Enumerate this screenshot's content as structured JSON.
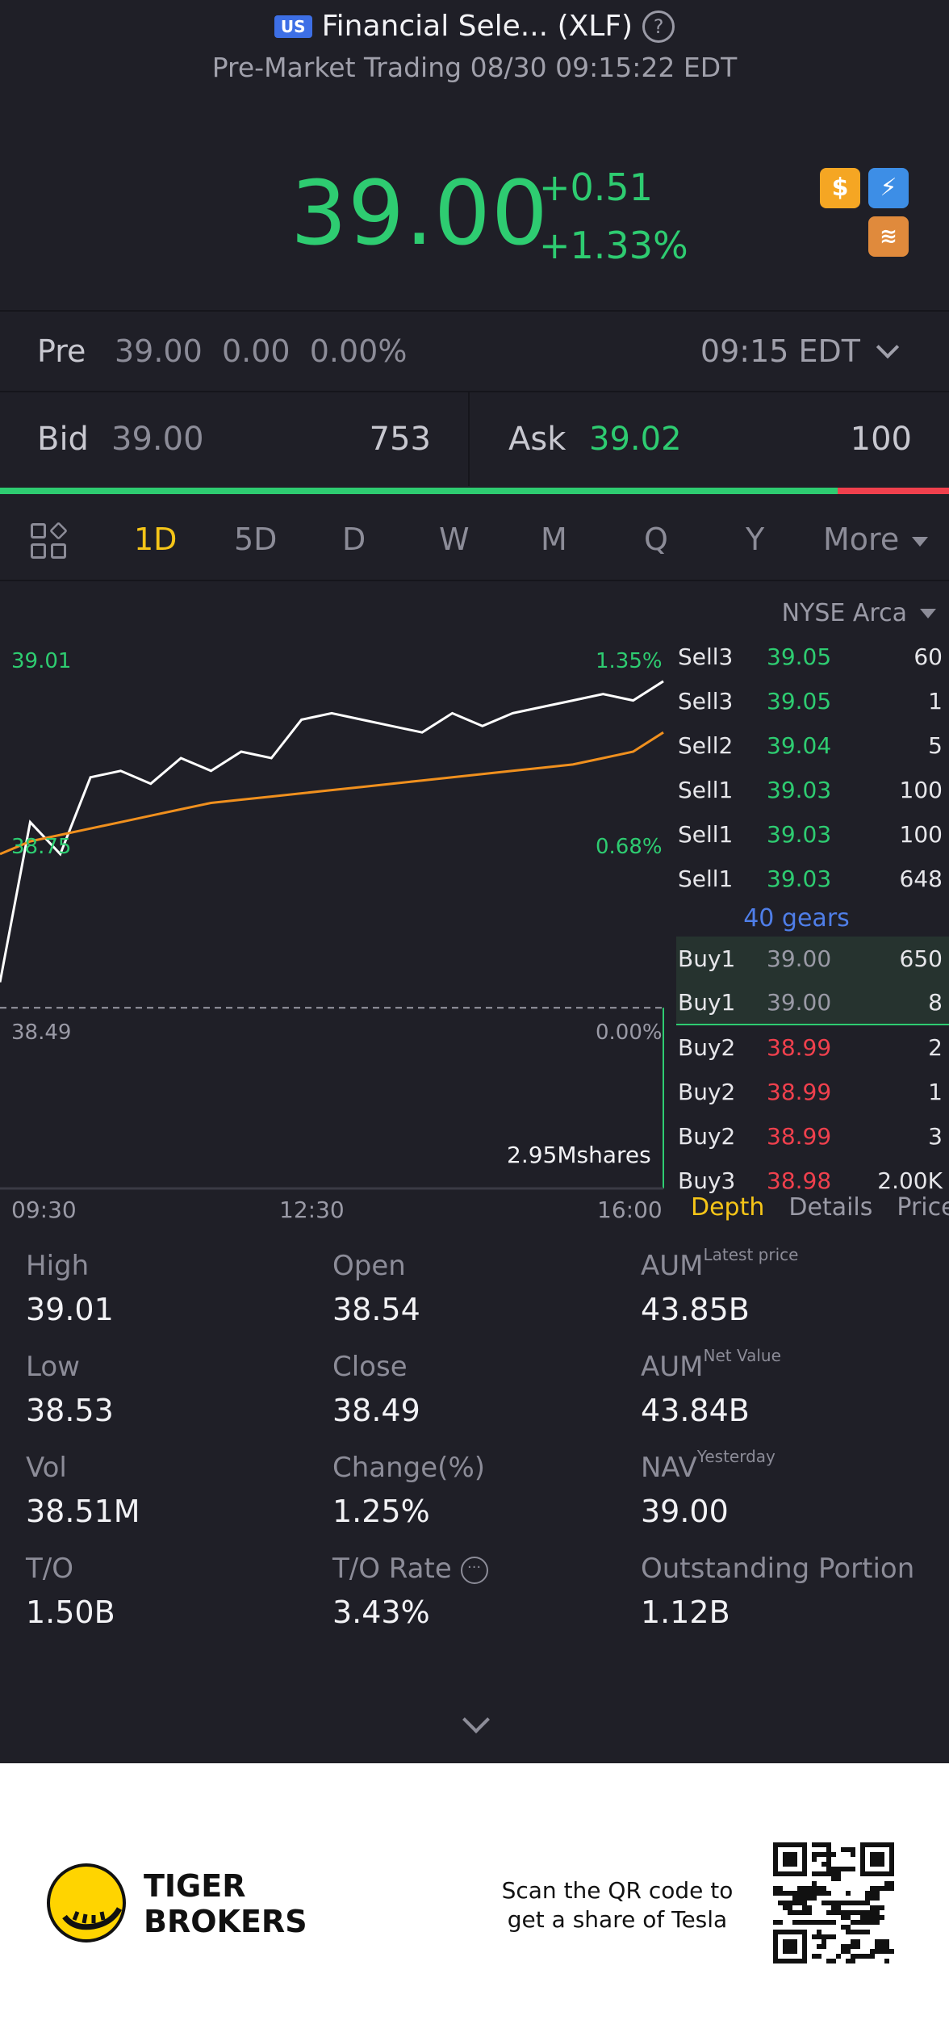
{
  "header": {
    "market_badge": "US",
    "title": "Financial Sele... (XLF)",
    "help_glyph": "?",
    "subtitle": "Pre-Market Trading 08/30 09:15:22 EDT"
  },
  "quote": {
    "price": "39.00",
    "change": "+0.51",
    "change_pct": "+1.33%",
    "icons": [
      "dollar-icon",
      "flash-icon",
      "layers-icon"
    ],
    "icon_glyphs": {
      "dollar": "$",
      "flash": "⚡",
      "layers": "≋"
    }
  },
  "pre": {
    "label": "Pre",
    "price": "39.00",
    "change": "0.00",
    "change_pct": "0.00%",
    "time": "09:15 EDT"
  },
  "bid_ask": {
    "bid_label": "Bid",
    "bid_price": "39.00",
    "bid_size": "753",
    "ask_label": "Ask",
    "ask_price": "39.02",
    "ask_size": "100",
    "bid_ratio": 0.883
  },
  "tabs": {
    "items": [
      "1D",
      "5D",
      "D",
      "W",
      "M",
      "Q",
      "Y"
    ],
    "active": "1D",
    "more_label": "More"
  },
  "chart": {
    "high_label": "39.01",
    "high_pct": "1.35%",
    "mid_label": "38.75",
    "mid_pct": "0.68%",
    "base_label": "38.49",
    "base_pct": "0.00%",
    "volume_label": "2.95Mshares",
    "x_labels": [
      "09:30",
      "12:30",
      "16:00"
    ]
  },
  "chart_data": {
    "type": "line",
    "x_labels": [
      "09:30",
      "12:30",
      "16:00"
    ],
    "ylim": [
      38.45,
      39.03
    ],
    "reference_close": 38.49,
    "series": [
      {
        "values": [
          38.53,
          38.78,
          38.73,
          38.85,
          38.86,
          38.84,
          38.88,
          38.86,
          38.89,
          38.88,
          38.94,
          38.95,
          38.94,
          38.93,
          38.92,
          38.95,
          38.93,
          38.95,
          38.96,
          38.97,
          38.98,
          38.97,
          39.0
        ]
      },
      {
        "values": [
          38.73,
          38.75,
          38.76,
          38.77,
          38.78,
          38.79,
          38.8,
          38.81,
          38.815,
          38.82,
          38.825,
          38.83,
          38.835,
          38.84,
          38.845,
          38.85,
          38.855,
          38.86,
          38.865,
          38.87,
          38.88,
          38.89,
          38.92
        ]
      }
    ]
  },
  "depth": {
    "exchange": "NYSE Arca",
    "gears_label": "40 gears",
    "sells": [
      {
        "label": "Sell3",
        "price": "39.05",
        "qty": "60"
      },
      {
        "label": "Sell3",
        "price": "39.05",
        "qty": "1"
      },
      {
        "label": "Sell2",
        "price": "39.04",
        "qty": "5"
      },
      {
        "label": "Sell1",
        "price": "39.03",
        "qty": "100"
      },
      {
        "label": "Sell1",
        "price": "39.03",
        "qty": "100"
      },
      {
        "label": "Sell1",
        "price": "39.03",
        "qty": "648"
      }
    ],
    "buys": [
      {
        "label": "Buy1",
        "price": "39.00",
        "qty": "650"
      },
      {
        "label": "Buy1",
        "price": "39.00",
        "qty": "8"
      },
      {
        "label": "Buy2",
        "price": "38.99",
        "qty": "2"
      },
      {
        "label": "Buy2",
        "price": "38.99",
        "qty": "1"
      },
      {
        "label": "Buy2",
        "price": "38.99",
        "qty": "3"
      },
      {
        "label": "Buy3",
        "price": "38.98",
        "qty": "2.00K"
      }
    ],
    "tabs": [
      "Depth",
      "Details",
      "Price"
    ]
  },
  "stats": {
    "high": {
      "k": "High",
      "v": "39.01"
    },
    "open": {
      "k": "Open",
      "v": "38.54"
    },
    "aum1": {
      "k": "AUM",
      "sup": "Latest price",
      "v": "43.85B"
    },
    "low": {
      "k": "Low",
      "v": "38.53"
    },
    "close": {
      "k": "Close",
      "v": "38.49"
    },
    "aum2": {
      "k": "AUM",
      "sup": "Net Value",
      "v": "43.84B"
    },
    "vol": {
      "k": "Vol",
      "v": "38.51M"
    },
    "chg": {
      "k": "Change(%)",
      "v": "1.25%"
    },
    "nav": {
      "k": "NAV",
      "sup": "Yesterday",
      "v": "39.00"
    },
    "to": {
      "k": "T/O",
      "v": "1.50B"
    },
    "torate": {
      "k": "T/O Rate",
      "v": "3.43%"
    },
    "outstanding": {
      "k": "Outstanding Portion",
      "v": "1.12B"
    }
  },
  "footer": {
    "brand_line1": "TIGER",
    "brand_line2": "BROKERS",
    "scan_line1": "Scan the QR code to",
    "scan_line2": "get a share of Tesla"
  },
  "colors": {
    "up": "#2ecc71",
    "down": "#f0404d",
    "accent": "#f5c518",
    "link": "#4f7ee8",
    "avg_line": "#f0901e"
  }
}
